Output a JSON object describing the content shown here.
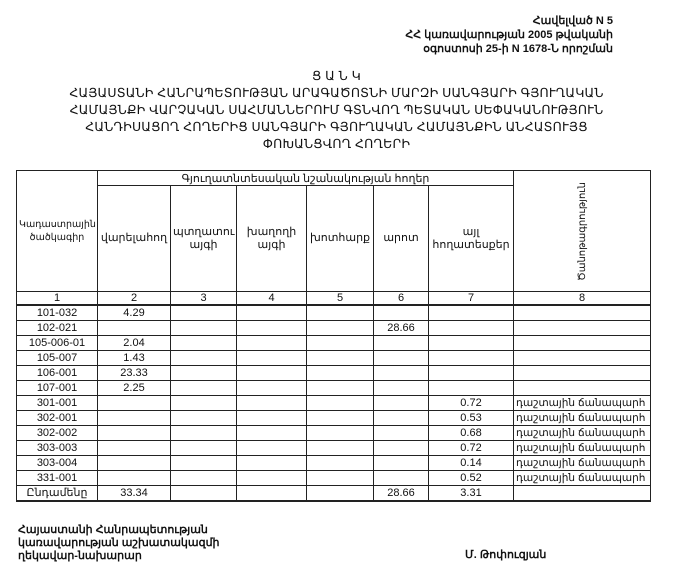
{
  "reference": {
    "line1": "Հավելված N 5",
    "line2": "ՀՀ կառավարության 2005 թվականի",
    "line3": "օգոստոսի 25-ի N 1678-Ն որոշման"
  },
  "title": {
    "line1": "Ց Ա Ն Կ",
    "line2": "ՀԱՅԱՍՏԱՆԻ ՀԱՆՐԱՊԵՏՈՒԹՅԱՆ  ԱՐԱԳԱԾՈՏՆԻ  ՄԱՐԶԻ ՍԱՆԳՅԱՐԻ ԳՅՈՒՂԱԿԱՆ",
    "line3": "ՀԱՄԱՅՆՔԻ ՎԱՐՉԱԿԱՆ ՍԱՀՄԱՆՆԵՐՈՒՄ  ԳՏՆՎՈՂ  ՊԵՏԱԿԱՆ ՍԵՓԱԿԱՆՈՒԹՅՈՒՆ",
    "line4": "ՀԱՆԴԻՍԱՑՈՂ ՀՈՂԵՐԻՑ  ՍԱՆԳՅԱՐԻ ԳՅՈՒՂԱԿԱՆ ՀԱՄԱՅՆՔԻՆ ԱՆՀԱՏՈՒՅՑ",
    "line5": "ՓՈԽԱՆՑՎՈՂ   ՀՈՂԵՐԻ"
  },
  "table": {
    "code_header": "Կադաստրային ծածկագիր",
    "group_header": "Գյուղատնտեսական նշանակության հողեր",
    "columns": [
      "վարելահող",
      "պտղատու այգի",
      "խաղողի այգի",
      "խոտհարք",
      "արոտ",
      "այլ հողատեսքեր"
    ],
    "note_header": "Ծանոթագրություն",
    "numbers": [
      "1",
      "2",
      "3",
      "4",
      "5",
      "6",
      "7",
      "8"
    ],
    "rows": [
      [
        "101-032",
        "4.29",
        "",
        "",
        "",
        "",
        "",
        ""
      ],
      [
        "102-021",
        "",
        "",
        "",
        "",
        "28.66",
        "",
        ""
      ],
      [
        "105-006-01",
        "2.04",
        "",
        "",
        "",
        "",
        "",
        ""
      ],
      [
        "105-007",
        "1.43",
        "",
        "",
        "",
        "",
        "",
        ""
      ],
      [
        "106-001",
        "23.33",
        "",
        "",
        "",
        "",
        "",
        ""
      ],
      [
        "107-001",
        "2.25",
        "",
        "",
        "",
        "",
        "",
        ""
      ],
      [
        "301-001",
        "",
        "",
        "",
        "",
        "",
        "0.72",
        "դաշտային ճանապարհ"
      ],
      [
        "302-001",
        "",
        "",
        "",
        "",
        "",
        "0.53",
        "դաշտային ճանապարհ"
      ],
      [
        "302-002",
        "",
        "",
        "",
        "",
        "",
        "0.68",
        "դաշտային ճանապարհ"
      ],
      [
        "303-003",
        "",
        "",
        "",
        "",
        "",
        "0.72",
        "դաշտային ճանապարհ"
      ],
      [
        "303-004",
        "",
        "",
        "",
        "",
        "",
        "0.14",
        "դաշտային ճանապարհ"
      ],
      [
        "331-001",
        "",
        "",
        "",
        "",
        "",
        "0.52",
        "դաշտային ճանապարհ"
      ]
    ],
    "total": [
      "Ընդամենը",
      "33.34",
      "",
      "",
      "",
      "28.66",
      "3.31",
      ""
    ]
  },
  "footer": {
    "position1": "Հայաստանի Հանրապետության",
    "position2": "կառավարության աշխատակազմի",
    "position3": "ղեկավար-նախարար",
    "signatory": "Մ. Թոփուզյան"
  }
}
